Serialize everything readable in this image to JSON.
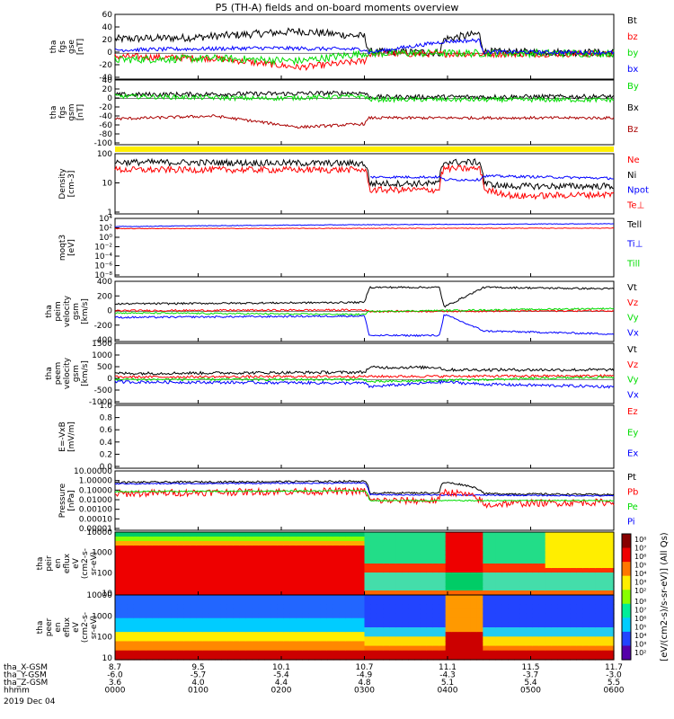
{
  "title": "P5 (TH-A) fields and on-board moments overview",
  "colors": {
    "black": "#000000",
    "red": "#ff0000",
    "green": "#00dd00",
    "blue": "#0000ff",
    "darkred": "#aa0000",
    "yellow": "#ffee00"
  },
  "chart_data": [
    {
      "type": "line",
      "panel": "fgs_gse",
      "ylabel": [
        "tha",
        "fgs",
        "gse",
        "[nT]"
      ],
      "yticks": [
        "60",
        "40",
        "20",
        "0",
        "-20",
        "-40"
      ],
      "ylim": [
        -40,
        60
      ],
      "legend": [
        {
          "name": "Bt",
          "color": "black"
        },
        {
          "name": "bz",
          "color": "red"
        },
        {
          "name": "by",
          "color": "green"
        },
        {
          "name": "bx",
          "color": "blue"
        }
      ],
      "series": [
        {
          "name": "Bt",
          "color": "black",
          "noise": 6,
          "segments": [
            [
              0,
              22
            ],
            [
              0.15,
              24
            ],
            [
              0.37,
              34
            ],
            [
              0.5,
              26
            ],
            [
              0.51,
              2
            ],
            [
              0.65,
              1
            ],
            [
              0.66,
              22
            ],
            [
              0.73,
              30
            ],
            [
              0.74,
              2
            ],
            [
              1,
              1
            ]
          ]
        },
        {
          "name": "bz",
          "color": "red",
          "noise": 5,
          "segments": [
            [
              0,
              -5
            ],
            [
              0.2,
              -8
            ],
            [
              0.37,
              -22
            ],
            [
              0.5,
              -12
            ],
            [
              0.51,
              -1
            ],
            [
              1,
              -1
            ]
          ]
        },
        {
          "name": "by",
          "color": "green",
          "noise": 6,
          "segments": [
            [
              0,
              -10
            ],
            [
              0.2,
              -8
            ],
            [
              0.37,
              -12
            ],
            [
              0.5,
              0
            ],
            [
              0.51,
              0
            ],
            [
              1,
              0
            ]
          ]
        },
        {
          "name": "bx",
          "color": "blue",
          "noise": 3,
          "segments": [
            [
              0,
              5
            ],
            [
              0.3,
              8
            ],
            [
              0.5,
              6
            ],
            [
              0.51,
              1
            ],
            [
              0.66,
              18
            ],
            [
              0.73,
              20
            ],
            [
              0.74,
              2
            ],
            [
              1,
              1
            ]
          ]
        }
      ]
    },
    {
      "type": "line",
      "panel": "fgs_gsm",
      "ylabel": [
        "tha",
        "fgs",
        "gsm",
        "[nT]"
      ],
      "yticks": [
        "40",
        "20",
        "0",
        "-20",
        "-40",
        "-60",
        "-80",
        "-100"
      ],
      "ylim": [
        -100,
        40
      ],
      "legend": [
        {
          "name": "By",
          "color": "green"
        },
        {
          "name": "Bx",
          "color": "black"
        },
        {
          "name": "Bz",
          "color": "darkred"
        }
      ],
      "series": [
        {
          "name": "Bx",
          "color": "black",
          "noise": 5,
          "segments": [
            [
              0,
              8
            ],
            [
              0.3,
              10
            ],
            [
              0.5,
              12
            ],
            [
              0.51,
              3
            ],
            [
              1,
              4
            ]
          ]
        },
        {
          "name": "By",
          "color": "green",
          "noise": 5,
          "segments": [
            [
              0,
              5
            ],
            [
              0.3,
              0
            ],
            [
              0.5,
              5
            ],
            [
              0.51,
              -2
            ],
            [
              1,
              -3
            ]
          ]
        },
        {
          "name": "Bz",
          "color": "darkred",
          "noise": 3,
          "segments": [
            [
              0,
              -44
            ],
            [
              0.2,
              -38
            ],
            [
              0.37,
              -62
            ],
            [
              0.5,
              -55
            ],
            [
              0.51,
              -42
            ],
            [
              1,
              -42
            ]
          ]
        }
      ]
    },
    {
      "type": "line",
      "panel": "density",
      "ylabel": [
        "Density",
        "[cm-3]"
      ],
      "yticks": [
        "100",
        "10",
        "1"
      ],
      "scale": "log",
      "ylim": [
        0.3,
        200
      ],
      "legend": [
        {
          "name": "Ne",
          "color": "red"
        },
        {
          "name": "Ni",
          "color": "black"
        },
        {
          "name": "Npot",
          "color": "blue"
        },
        {
          "name": "Te⊥",
          "color": "red"
        }
      ],
      "series": [
        {
          "name": "Ni",
          "color": "black",
          "noise": 0.05,
          "segments": [
            [
              0,
              80
            ],
            [
              0.5,
              70
            ],
            [
              0.51,
              8
            ],
            [
              0.65,
              8
            ],
            [
              0.66,
              80
            ],
            [
              0.73,
              80
            ],
            [
              0.74,
              8
            ],
            [
              0.78,
              6
            ],
            [
              1,
              6
            ]
          ]
        },
        {
          "name": "Ne",
          "color": "red",
          "noise": 0.05,
          "segments": [
            [
              0,
              35
            ],
            [
              0.5,
              35
            ],
            [
              0.51,
              4
            ],
            [
              0.65,
              4
            ],
            [
              0.66,
              40
            ],
            [
              0.73,
              40
            ],
            [
              0.74,
              4
            ],
            [
              0.8,
              2
            ],
            [
              1,
              2.5
            ]
          ]
        },
        {
          "name": "Npot",
          "color": "blue",
          "noise": 0.02,
          "segments": [
            [
              0.51,
              16
            ],
            [
              0.65,
              16
            ],
            [
              0.66,
              12
            ],
            [
              0.73,
              12
            ],
            [
              0.74,
              18
            ],
            [
              1,
              14
            ]
          ]
        }
      ]
    },
    {
      "type": "line",
      "panel": "mom_temp",
      "ylabel": [
        "moqt3",
        "[eV]"
      ],
      "yticks": [
        "10⁴",
        "10²",
        "10⁰",
        "10⁻²",
        "10⁻⁴",
        "10⁻⁶",
        "10⁻⁸"
      ],
      "scale": "log",
      "ylim": [
        1e-08,
        10000
      ],
      "legend": [
        {
          "name": "Tell",
          "color": "black"
        },
        {
          "name": "Ti⊥",
          "color": "blue"
        },
        {
          "name": "Till",
          "color": "green"
        }
      ],
      "series": [
        {
          "name": "Ti⊥",
          "color": "blue",
          "noise": 0.02,
          "segments": [
            [
              0,
              200
            ],
            [
              1,
              800
            ]
          ]
        },
        {
          "name": "Te⊥",
          "color": "red",
          "noise": 0.02,
          "segments": [
            [
              0,
              80
            ],
            [
              1,
              100
            ]
          ]
        }
      ]
    },
    {
      "type": "line",
      "panel": "peim_velocity",
      "ylabel": [
        "tha",
        "peim",
        "velocity",
        "gsm",
        "[km/s]"
      ],
      "yticks": [
        "400",
        "200",
        "0",
        "-200",
        "-400"
      ],
      "ylim": [
        -400,
        400
      ],
      "legend": [
        {
          "name": "Vt",
          "color": "black"
        },
        {
          "name": "Vz",
          "color": "red"
        },
        {
          "name": "Vy",
          "color": "green"
        },
        {
          "name": "Vx",
          "color": "blue"
        }
      ],
      "series": [
        {
          "name": "Vt",
          "color": "black",
          "noise": 12,
          "segments": [
            [
              0,
              100
            ],
            [
              0.5,
              120
            ],
            [
              0.51,
              320
            ],
            [
              0.65,
              320
            ],
            [
              0.66,
              60
            ],
            [
              0.74,
              320
            ],
            [
              1,
              300
            ]
          ]
        },
        {
          "name": "Vz",
          "color": "red",
          "noise": 12,
          "segments": [
            [
              0,
              10
            ],
            [
              0.5,
              20
            ],
            [
              0.51,
              0
            ],
            [
              1,
              10
            ]
          ]
        },
        {
          "name": "Vy",
          "color": "green",
          "noise": 10,
          "segments": [
            [
              0,
              -20
            ],
            [
              0.5,
              -40
            ],
            [
              0.51,
              0
            ],
            [
              1,
              40
            ]
          ]
        },
        {
          "name": "Vx",
          "color": "blue",
          "noise": 12,
          "segments": [
            [
              0,
              -80
            ],
            [
              0.5,
              -60
            ],
            [
              0.51,
              -320
            ],
            [
              0.65,
              -320
            ],
            [
              0.66,
              -40
            ],
            [
              0.74,
              -260
            ],
            [
              1,
              -300
            ]
          ]
        }
      ]
    },
    {
      "type": "line",
      "panel": "peem_velocity",
      "ylabel": [
        "tha",
        "peem",
        "velocity",
        "gsm",
        "[km/s]"
      ],
      "yticks": [
        "1500",
        "1000",
        "500",
        "0",
        "-500",
        "-1000"
      ],
      "ylim": [
        -1000,
        1500
      ],
      "legend": [
        {
          "name": "Vt",
          "color": "black"
        },
        {
          "name": "Vz",
          "color": "red"
        },
        {
          "name": "Vy",
          "color": "green"
        },
        {
          "name": "Vx",
          "color": "blue"
        }
      ],
      "series": [
        {
          "name": "Vt",
          "color": "black",
          "noise": 60,
          "segments": [
            [
              0,
              250
            ],
            [
              0.5,
              300
            ],
            [
              0.51,
              500
            ],
            [
              0.65,
              500
            ],
            [
              0.66,
              400
            ],
            [
              1,
              400
            ]
          ]
        },
        {
          "name": "Vz",
          "color": "red",
          "noise": 50,
          "segments": [
            [
              0,
              100
            ],
            [
              1,
              150
            ]
          ]
        },
        {
          "name": "Vy",
          "color": "green",
          "noise": 50,
          "segments": [
            [
              0,
              0
            ],
            [
              0.5,
              0
            ],
            [
              0.51,
              -100
            ],
            [
              1,
              100
            ]
          ]
        },
        {
          "name": "Vx",
          "color": "blue",
          "noise": 60,
          "segments": [
            [
              0,
              -100
            ],
            [
              0.5,
              -150
            ],
            [
              0.51,
              -300
            ],
            [
              0.66,
              -100
            ],
            [
              0.74,
              -200
            ],
            [
              1,
              -300
            ]
          ]
        }
      ]
    },
    {
      "type": "line",
      "panel": "efield",
      "ylabel": [
        "E=-VxB",
        "[mV/m]"
      ],
      "yticks": [
        "1.0",
        "0.8",
        "0.6",
        "0.4",
        "0.2",
        "0.0"
      ],
      "ylim": [
        0,
        1
      ],
      "legend": [
        {
          "name": "Ez",
          "color": "red"
        },
        {
          "name": "Ey",
          "color": "green"
        },
        {
          "name": "Ex",
          "color": "blue"
        }
      ],
      "series": []
    },
    {
      "type": "line",
      "panel": "pressure",
      "ylabel": [
        "Pressure",
        "[nPa]"
      ],
      "yticks": [
        "10.00000",
        "1.00000",
        "0.10000",
        "0.01000",
        "0.00100",
        "0.00010",
        "0.00001"
      ],
      "scale": "log",
      "ylim": [
        1e-05,
        10
      ],
      "legend": [
        {
          "name": "Pt",
          "color": "black"
        },
        {
          "name": "Pb",
          "color": "red"
        },
        {
          "name": "Pe",
          "color": "green"
        },
        {
          "name": "Pi",
          "color": "blue"
        }
      ],
      "series": [
        {
          "name": "Pt",
          "color": "black",
          "noise": 0.03,
          "segments": [
            [
              0,
              0.7
            ],
            [
              0.5,
              0.9
            ],
            [
              0.51,
              0.06
            ],
            [
              0.65,
              0.06
            ],
            [
              0.66,
              0.7
            ],
            [
              0.74,
              0.05
            ],
            [
              1,
              0.04
            ]
          ]
        },
        {
          "name": "Pi",
          "color": "blue",
          "noise": 0.02,
          "segments": [
            [
              0,
              0.5
            ],
            [
              0.5,
              0.6
            ],
            [
              0.51,
              0.04
            ],
            [
              1,
              0.03
            ]
          ]
        },
        {
          "name": "Pb",
          "color": "red",
          "noise": 0.12,
          "segments": [
            [
              0,
              0.05
            ],
            [
              0.3,
              0.08
            ],
            [
              0.5,
              0.09
            ],
            [
              0.51,
              0.01
            ],
            [
              0.65,
              0.01
            ],
            [
              0.66,
              0.08
            ],
            [
              0.74,
              0.003
            ],
            [
              0.78,
              0.005
            ],
            [
              1,
              0.007
            ]
          ]
        },
        {
          "name": "Pe",
          "color": "green",
          "noise": 0.02,
          "segments": [
            [
              0,
              0.08
            ],
            [
              0.5,
              0.1
            ],
            [
              0.51,
              0.01
            ],
            [
              1,
              0.01
            ]
          ]
        }
      ]
    },
    {
      "type": "heatmap",
      "panel": "peir_eflux",
      "ylabel": [
        "tha",
        "peir",
        "en",
        "eflux",
        "eV",
        "(cm2-s-",
        "sr-eV)"
      ],
      "yticks": [
        "10000",
        "1000",
        "100",
        "10"
      ],
      "scale": "log"
    },
    {
      "type": "heatmap",
      "panel": "peer_eflux",
      "ylabel": [
        "tha",
        "peer",
        "en",
        "eflux",
        "eV",
        "(cm2-s-",
        "sr-eV)"
      ],
      "yticks": [
        "10000",
        "1000",
        "100",
        "10"
      ],
      "scale": "log"
    }
  ],
  "colorbar": {
    "label": "[eV/(cm2-s)/s-sr-eV)] (All Qs)",
    "ticks_top": [
      "10⁸",
      "10⁷",
      "10⁶",
      "10⁵",
      "10⁴",
      "10³",
      "10²"
    ],
    "ticks_bottom": [
      "10⁸",
      "10⁷",
      "10⁶",
      "10⁵",
      "10⁴",
      "10³",
      "10²"
    ]
  },
  "xaxis": {
    "rows": [
      {
        "label": "tha_X-GSM",
        "values": [
          "8.7",
          "9.5",
          "10.1",
          "10.7",
          "11.1",
          "11.5",
          "11.7"
        ]
      },
      {
        "label": "tha_Y-GSM",
        "values": [
          "-6.0",
          "-5.7",
          "-5.4",
          "-4.9",
          "-4.3",
          "-3.7",
          "-3.0"
        ]
      },
      {
        "label": "tha_Z-GSM",
        "values": [
          "3.6",
          "4.0",
          "4.4",
          "4.8",
          "5.1",
          "5.4",
          "5.5"
        ]
      },
      {
        "label": "hhmm",
        "values": [
          "0000",
          "0100",
          "0200",
          "0300",
          "0400",
          "0500",
          "0600"
        ]
      }
    ],
    "date": "2019 Dec 04"
  }
}
